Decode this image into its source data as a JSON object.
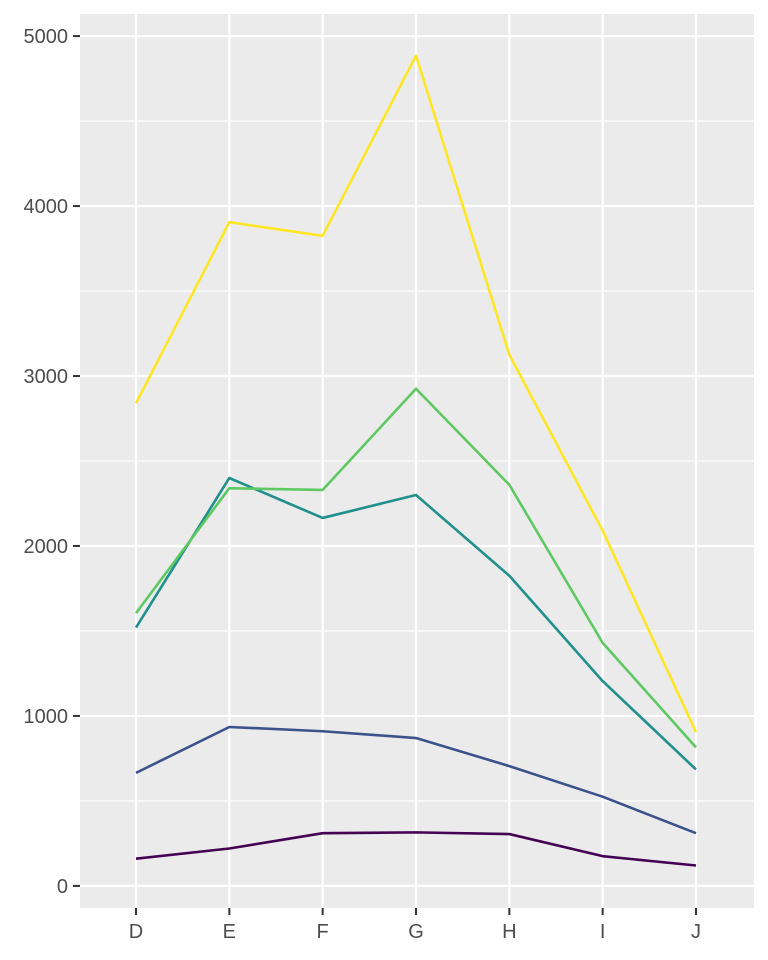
{
  "chart_data": {
    "type": "line",
    "title": "",
    "xlabel": "",
    "ylabel": "",
    "categories": [
      "D",
      "E",
      "F",
      "G",
      "H",
      "I",
      "J"
    ],
    "ylim": [
      -130,
      5130
    ],
    "yticks": [
      0,
      1000,
      2000,
      3000,
      4000,
      5000
    ],
    "ytick_labels": [
      "0",
      "1000",
      "2000",
      "3000",
      "4000",
      "5000"
    ],
    "grid": true,
    "legend": "none",
    "panel_background": "#ebebeb",
    "grid_color": "#ffffff",
    "series": [
      {
        "color": "#440154",
        "values": [
          160,
          220,
          310,
          315,
          305,
          175,
          120
        ]
      },
      {
        "color": "#3b528b",
        "values": [
          665,
          935,
          910,
          870,
          705,
          525,
          310
        ]
      },
      {
        "color": "#21908c",
        "values": [
          1520,
          2400,
          2165,
          2300,
          1825,
          1205,
          685
        ]
      },
      {
        "color": "#5ec962",
        "values": [
          1605,
          2340,
          2330,
          2925,
          2360,
          1430,
          815
        ]
      },
      {
        "color": "#fde725",
        "values": [
          2840,
          3905,
          3825,
          4885,
          3125,
          2090,
          905
        ]
      }
    ]
  }
}
